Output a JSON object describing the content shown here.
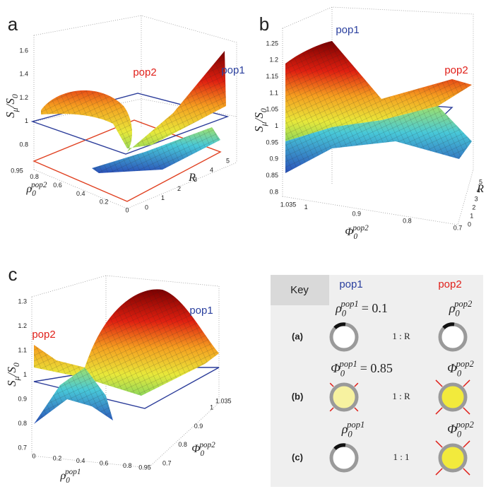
{
  "panels": [
    {
      "letter": "a",
      "z_label": {
        "base": "S",
        "sub": "μ",
        "mid": "/S",
        "sub2": "0"
      },
      "z_ticks": [
        0.8,
        1,
        1.2,
        1.4,
        1.6
      ],
      "x_label": {
        "base": "ρ",
        "sub": "0",
        "sup": "pop2"
      },
      "x_ticks": [
        0.95,
        0.8,
        0.6,
        0.4,
        0.2,
        0
      ],
      "y_label": "R",
      "y_ticks": [
        0,
        1,
        2,
        3,
        4,
        5
      ],
      "pop1": "pop1",
      "pop2": "pop2"
    },
    {
      "letter": "b",
      "z_label": {
        "base": "S",
        "sub": "μ",
        "mid": "/S",
        "sub2": "0"
      },
      "z_ticks": [
        0.8,
        0.85,
        0.9,
        0.95,
        1,
        1.05,
        1.1,
        1.15,
        1.2,
        1.25
      ],
      "x_label": {
        "base": "Φ",
        "sub": "0",
        "sup": "pop2"
      },
      "x_ticks": [
        1.035,
        1,
        0.9,
        0.8,
        0.7
      ],
      "y_label": "R",
      "y_ticks": [
        0,
        1,
        2,
        3,
        4,
        5
      ],
      "pop1": "pop1",
      "pop2": "pop2"
    },
    {
      "letter": "c",
      "z_label": {
        "base": "S",
        "sub": "μ",
        "mid": "/S",
        "sub2": "0"
      },
      "z_ticks": [
        0.7,
        0.8,
        0.9,
        1,
        1.1,
        1.2,
        1.3
      ],
      "x_label": {
        "base": "ρ",
        "sub": "0",
        "sup": "pop1"
      },
      "x_ticks": [
        0,
        0.2,
        0.4,
        0.6,
        0.8,
        0.95
      ],
      "y_label": {
        "base": "Φ",
        "sub": "0",
        "sup": "pop2"
      },
      "y_ticks": [
        0.7,
        0.8,
        0.9,
        1,
        1.035
      ],
      "pop1": "pop1",
      "pop2": "pop2"
    }
  ],
  "key": {
    "title": "Key",
    "col1": "pop1",
    "col2": "pop2",
    "rows": [
      {
        "label": "(a)",
        "left": {
          "base": "ρ",
          "sub": "0",
          "sup": "pop1",
          "rest": "= 0.1"
        },
        "ratio": "1 : R",
        "right": {
          "base": "ρ",
          "sub": "0",
          "sup": "pop2"
        }
      },
      {
        "label": "(b)",
        "left": {
          "base": "Φ",
          "sub": "0",
          "sup": "pop1",
          "rest": "= 0.85"
        },
        "ratio": "1 : R",
        "right": {
          "base": "Φ",
          "sub": "0",
          "sup": "pop2"
        }
      },
      {
        "label": "(c)",
        "left": {
          "base": "ρ",
          "sub": "0",
          "sup": "pop1"
        },
        "ratio": "1 : 1",
        "right": {
          "base": "Φ",
          "sub": "0",
          "sup": "pop2"
        }
      }
    ]
  }
}
